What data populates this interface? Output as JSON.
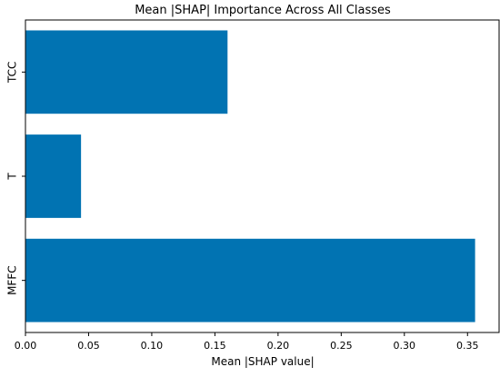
{
  "chart_data": {
    "type": "bar",
    "orientation": "horizontal",
    "title": "Mean |SHAP| Importance Across All Classes",
    "xlabel": "Mean |SHAP value|",
    "ylabel": "",
    "categories": [
      "MFFC",
      "T",
      "TCC"
    ],
    "values": [
      0.356,
      0.044,
      0.16
    ],
    "xlim": [
      0.0,
      0.375
    ],
    "xticks": [
      "0.00",
      "0.05",
      "0.10",
      "0.15",
      "0.20",
      "0.25",
      "0.30",
      "0.35"
    ],
    "grid": false,
    "bar_color": "#0173b2"
  }
}
